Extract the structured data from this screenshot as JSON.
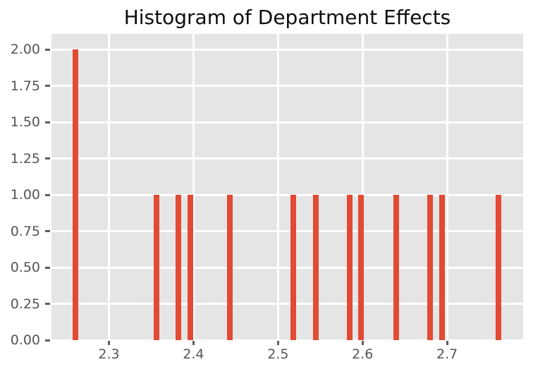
{
  "colors": {
    "bar": "#E24A33",
    "plot_background": "#E5E5E5",
    "figure_background": "#FFFFFF",
    "grid": "#FFFFFF",
    "tick_mark": "#5E5E5E",
    "tick_label": "#555555",
    "title_text": "#0D0D0D"
  },
  "chart_data": {
    "type": "bar",
    "subtype": "histogram",
    "title": "Histogram of Department Effects",
    "xlabel": "",
    "ylabel": "",
    "grid": true,
    "legend": false,
    "xlim": [
      2.232,
      2.79
    ],
    "ylim": [
      0,
      2.107
    ],
    "bin_width": 0.0067,
    "x": [
      2.26,
      2.356,
      2.382,
      2.396,
      2.443,
      2.518,
      2.545,
      2.585,
      2.598,
      2.64,
      2.68,
      2.694,
      2.761
    ],
    "counts": [
      2,
      1,
      1,
      1,
      1,
      1,
      1,
      1,
      1,
      1,
      1,
      1,
      1
    ],
    "xticks": {
      "values": [
        2.3,
        2.4,
        2.5,
        2.6,
        2.7
      ],
      "labels": [
        "2.3",
        "2.4",
        "2.5",
        "2.6",
        "2.7"
      ]
    },
    "yticks": {
      "values": [
        0,
        0.25,
        0.5,
        0.75,
        1.0,
        1.25,
        1.5,
        1.75,
        2.0
      ],
      "labels": [
        "0.00",
        "0.25",
        "0.50",
        "0.75",
        "1.00",
        "1.25",
        "1.50",
        "1.75",
        "2.00"
      ]
    }
  }
}
